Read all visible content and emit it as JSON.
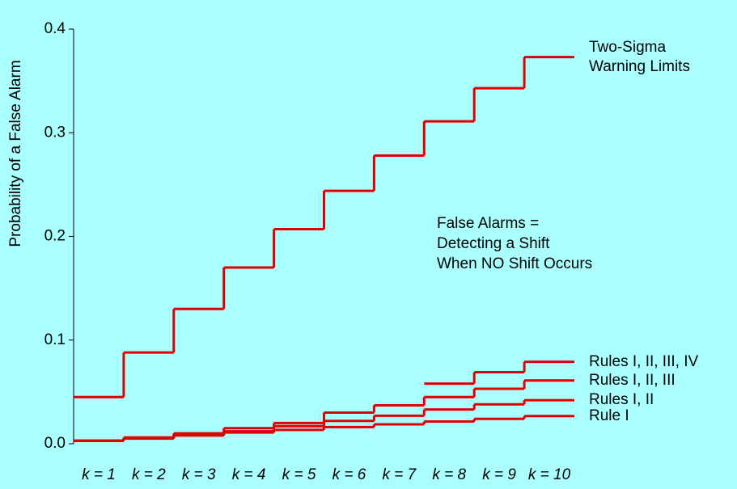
{
  "chart_data": {
    "type": "step",
    "y_label": "Probability of a False Alarm",
    "categories": [
      "k = 1",
      "k = 2",
      "k = 3",
      "k = 4",
      "k = 5",
      "k = 6",
      "k = 7",
      "k = 8",
      "k = 9",
      "k = 10"
    ],
    "ylim": [
      0,
      0.4
    ],
    "yticks": [
      {
        "value": 0,
        "label": "0.0"
      },
      0.1,
      0.2,
      0.3,
      0.4
    ],
    "annotation": [
      "False Alarms =",
      "Detecting a Shift",
      "When NO Shift Occurs"
    ],
    "series": [
      {
        "name": "Two-Sigma Warning Limits",
        "color": "#e00000",
        "values": [
          0.045,
          0.088,
          0.13,
          0.17,
          0.207,
          0.244,
          0.278,
          0.311,
          0.343,
          0.373
        ]
      },
      {
        "name": "Rules I, II, III, IV",
        "color": "#e00000",
        "values": [
          null,
          null,
          null,
          null,
          null,
          null,
          null,
          0.058,
          0.069,
          0.079
        ]
      },
      {
        "name": "Rules I, II, III",
        "color": "#e00000",
        "values": [
          0.003,
          0.006,
          0.01,
          0.015,
          0.02,
          0.03,
          0.037,
          0.045,
          0.053,
          0.061
        ]
      },
      {
        "name": "Rules I, II",
        "color": "#e00000",
        "values": [
          0.003,
          0.005,
          0.008,
          0.012,
          0.017,
          0.022,
          0.027,
          0.033,
          0.038,
          0.042
        ]
      },
      {
        "name": "Rule I",
        "color": "#e00000",
        "values": [
          0.0027,
          0.0054,
          0.0081,
          0.0108,
          0.0134,
          0.0161,
          0.0187,
          0.0214,
          0.024,
          0.0267
        ]
      }
    ]
  }
}
